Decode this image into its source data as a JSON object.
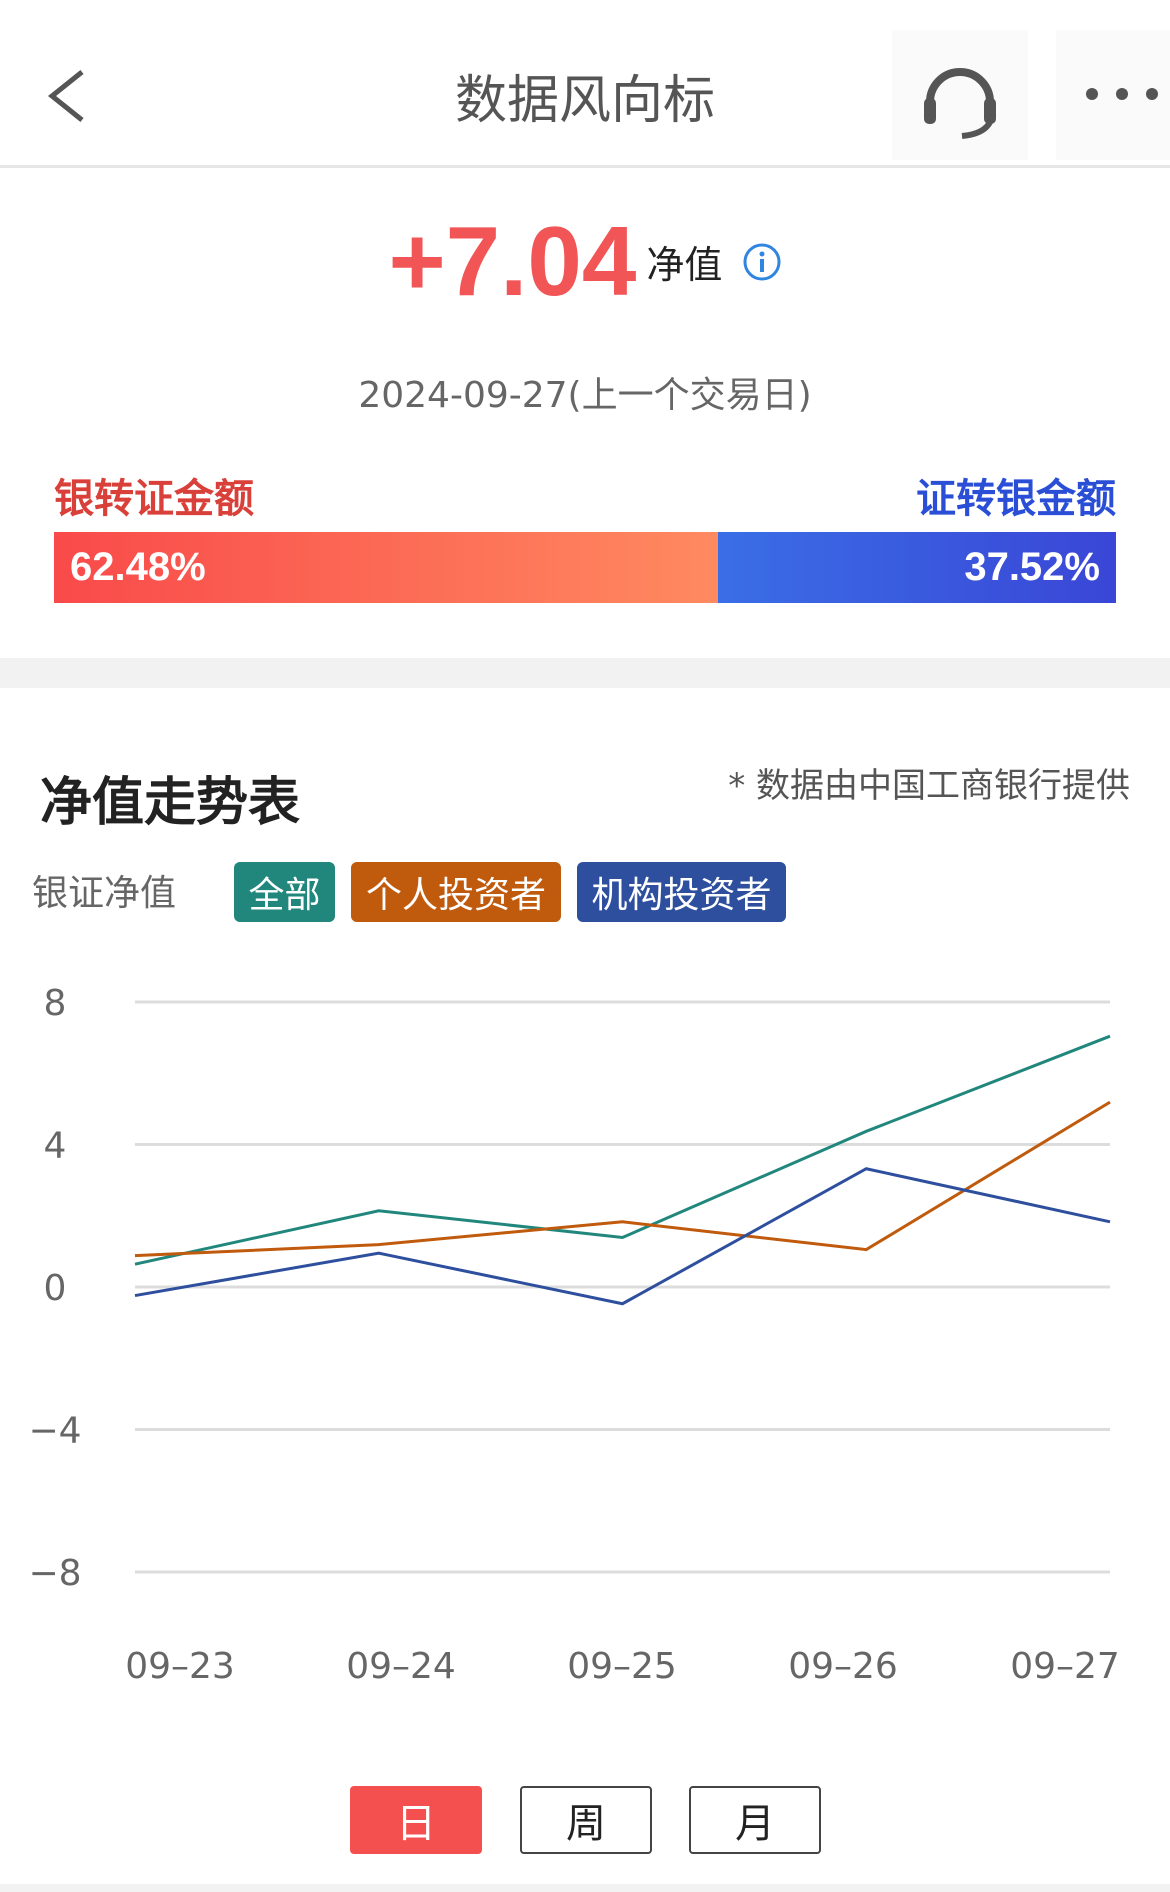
{
  "header": {
    "title": "数据风向标",
    "back_icon": "chevron-left-icon",
    "support_icon": "headset-icon",
    "more_icon": "more-dots-icon"
  },
  "summary": {
    "value": "+7.04",
    "unit": "净值",
    "info_icon": "info-icon",
    "date": "2024-09-27(上一个交易日)"
  },
  "flow": {
    "left_label": "银转证金额",
    "right_label": "证转银金额",
    "left_pct": "62.48%",
    "right_pct": "37.52%",
    "left_value": 62.48,
    "right_value": 37.52,
    "left_color": "#f94a4a",
    "right_color": "#3a5ae0"
  },
  "trend": {
    "title": "净值走势表",
    "note": "* 数据由中国工商银行提供",
    "legend_label": "银证净值"
  },
  "period_tabs": [
    {
      "label": "日",
      "active": true
    },
    {
      "label": "周",
      "active": false
    },
    {
      "label": "月",
      "active": false
    }
  ],
  "chart_data": {
    "type": "line",
    "categories": [
      "09-23",
      "09-24",
      "09-25",
      "09-26",
      "09-27"
    ],
    "ylim": [
      -8,
      8
    ],
    "yticks": [
      "8",
      "4",
      "0",
      "-4",
      "-8"
    ],
    "ytick_values": [
      8,
      4,
      0,
      -4,
      -8
    ],
    "grid": true,
    "legend_placement": "top-left",
    "series": [
      {
        "name": "全部",
        "color": "#21877c",
        "values": [
          0.64,
          2.14,
          1.39,
          4.37,
          7.04
        ]
      },
      {
        "name": "个人投资者",
        "color": "#c05a0c",
        "values": [
          0.88,
          1.19,
          1.83,
          1.05,
          5.19
        ]
      },
      {
        "name": "机构投资者",
        "color": "#2e4f9e",
        "values": [
          -0.24,
          0.95,
          -0.47,
          3.32,
          1.83
        ]
      }
    ]
  }
}
